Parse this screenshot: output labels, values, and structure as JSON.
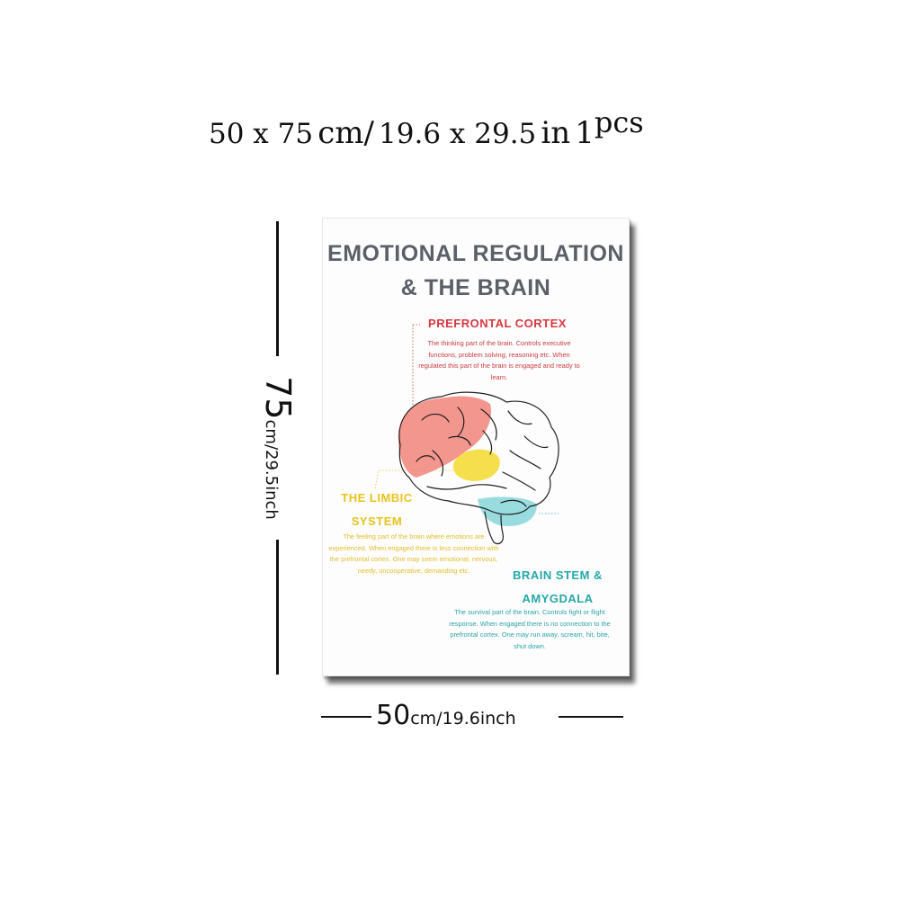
{
  "caption": {
    "dims_num": "50 x 75",
    "dims_unit": "cm/",
    "inch_num": "19.6 x  29.5",
    "inch_unit": "in",
    "qty_num": "1",
    "qty_unit": "pcs"
  },
  "poster": {
    "title_line1": "EMOTIONAL REGULATION",
    "title_line2": "& THE BRAIN",
    "prefrontal": {
      "heading": "PREFRONTAL CORTEX",
      "body": "The thinking part of the brain. Controls executive functions, problem solving, reasoning etc. When regulated this part of the brain is engaged and ready to learn."
    },
    "limbic": {
      "heading_line1": "THE LIMBIC",
      "heading_line2": "SYSTEM",
      "body": "The feeling part of the brain where emotions are experienced. When engaged there is less connection with the prefrontal cortex. One may seem emotional, nervous, needy, uncooperative, demanding etc."
    },
    "stem": {
      "heading_line1": "BRAIN STEM &",
      "heading_line2": "AMYGDALA",
      "body": "The survival part of the brain. Controls fight or flight response. When engaged there is no connection to the prefrontal cortex. One may run away, scream, hit, bite, shut down."
    },
    "colors": {
      "prefrontal": "#f0847a",
      "limbic": "#f5dc3a",
      "stem": "#8ed8dc",
      "title": "#5b6068"
    }
  },
  "dimensions": {
    "height_big": "75",
    "height_small": "cm/29.5inch",
    "width_big": "50",
    "width_small": "cm/19.6inch"
  }
}
